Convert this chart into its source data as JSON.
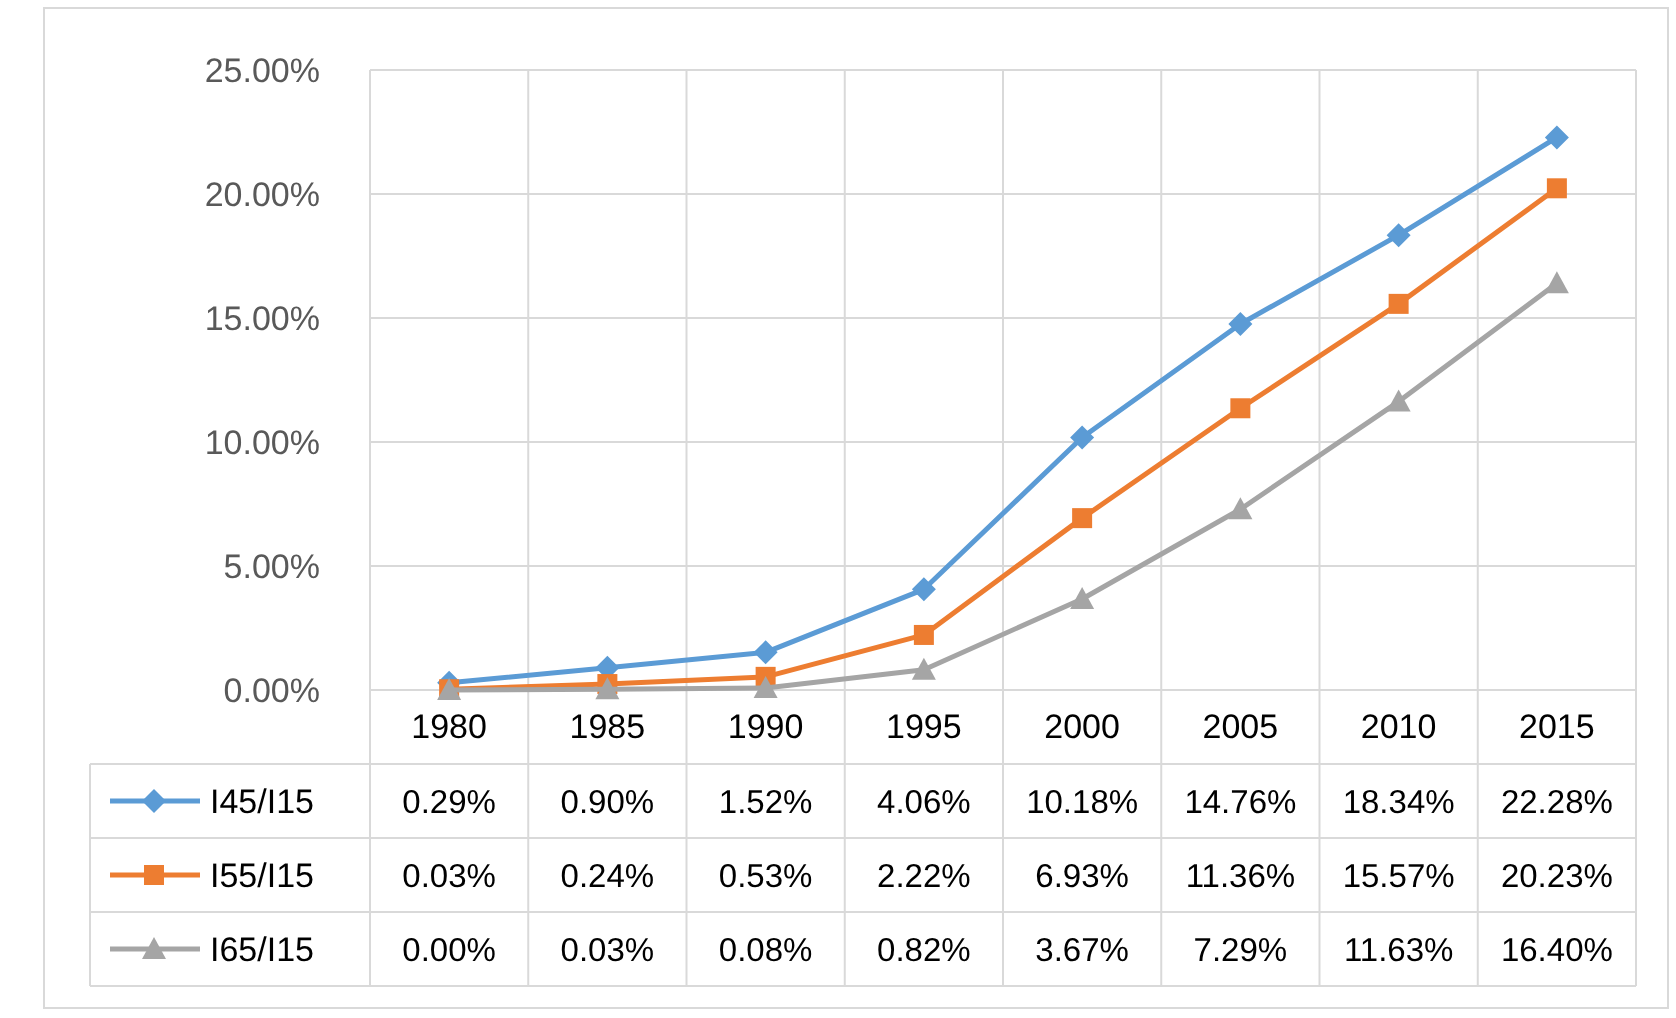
{
  "chart_data": {
    "type": "line",
    "categories": [
      "1980",
      "1985",
      "1990",
      "1995",
      "2000",
      "2005",
      "2010",
      "2015"
    ],
    "series": [
      {
        "name": "I45/I15",
        "color": "#5b9bd5",
        "marker": "diamond",
        "values": [
          0.29,
          0.9,
          1.52,
          4.06,
          10.18,
          14.76,
          18.34,
          22.28
        ],
        "value_labels": [
          "0.29%",
          "0.90%",
          "1.52%",
          "4.06%",
          "10.18%",
          "14.76%",
          "18.34%",
          "22.28%"
        ]
      },
      {
        "name": "I55/I15",
        "color": "#ed7d31",
        "marker": "square",
        "values": [
          0.03,
          0.24,
          0.53,
          2.22,
          6.93,
          11.36,
          15.57,
          20.23
        ],
        "value_labels": [
          "0.03%",
          "0.24%",
          "0.53%",
          "2.22%",
          "6.93%",
          "11.36%",
          "15.57%",
          "20.23%"
        ]
      },
      {
        "name": "I65/I15",
        "color": "#a5a5a5",
        "marker": "triangle",
        "values": [
          0.0,
          0.03,
          0.08,
          0.82,
          3.67,
          7.29,
          11.63,
          16.4
        ],
        "value_labels": [
          "0.00%",
          "0.03%",
          "0.08%",
          "0.82%",
          "3.67%",
          "7.29%",
          "11.63%",
          "16.40%"
        ]
      }
    ],
    "ylim": [
      0,
      25
    ],
    "yticks": [
      {
        "value": 0,
        "label": "0.00%"
      },
      {
        "value": 5,
        "label": "5.00%"
      },
      {
        "value": 10,
        "label": "10.00%"
      },
      {
        "value": 15,
        "label": "15.00%"
      },
      {
        "value": 20,
        "label": "20.00%"
      },
      {
        "value": 25,
        "label": "25.00%"
      }
    ],
    "grid": true,
    "legend": "bottom",
    "line_style": "solid"
  }
}
